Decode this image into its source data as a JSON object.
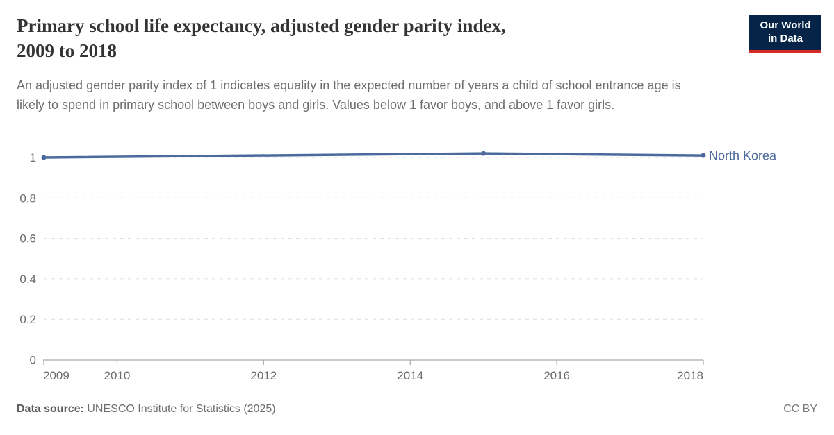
{
  "header": {
    "title_line1": "Primary school life expectancy, adjusted gender parity index,",
    "title_line2": "2009 to 2018",
    "subtitle": "An adjusted gender parity index of 1 indicates equality in the expected number of years a child of school entrance age is likely to spend in primary school between boys and girls. Values below 1 favor boys, and above 1 favor girls.",
    "logo": {
      "line1": "Our World",
      "line2": "in Data",
      "bg_color": "#052448",
      "accent_color": "#D42B27"
    }
  },
  "chart_data": {
    "type": "line",
    "title": "Primary school life expectancy, adjusted gender parity index, 2009 to 2018",
    "x": [
      2009,
      2015,
      2018
    ],
    "series": [
      {
        "name": "North Korea",
        "values": [
          1.0,
          1.02,
          1.01
        ],
        "color": "#4C6A9C"
      }
    ],
    "xlim": [
      2009,
      2018
    ],
    "ylim": [
      0,
      1
    ],
    "yticks": [
      0,
      0.2,
      0.4,
      0.6,
      0.8,
      1
    ],
    "ytick_labels": [
      "0",
      "0.2",
      "0.4",
      "0.6",
      "0.8",
      "1"
    ],
    "xticks": [
      2009,
      2010,
      2012,
      2014,
      2016,
      2018
    ],
    "xtick_labels": [
      "2009",
      "2010",
      "2012",
      "2014",
      "2016",
      "2018"
    ],
    "grid": "horizontal-dashed",
    "legend_position": "end-of-line label",
    "colors": {
      "grid": "#dedede",
      "axis": "#a8a8a8",
      "tick_text": "#6b6b6b"
    }
  },
  "footer": {
    "data_source_label": "Data source:",
    "data_source_value": "UNESCO Institute for Statistics (2025)",
    "license": "CC BY"
  }
}
